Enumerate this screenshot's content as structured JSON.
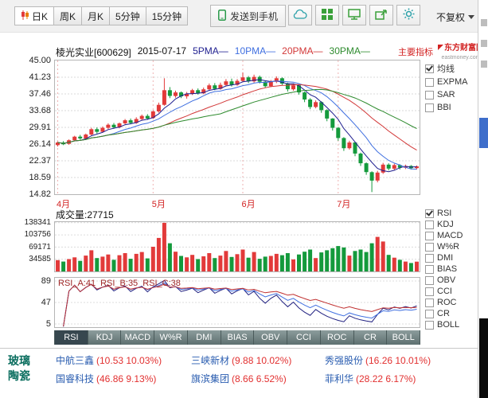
{
  "toolbar": {
    "period_tabs": [
      {
        "label": "日K",
        "active": true
      },
      {
        "label": "周K",
        "active": false
      },
      {
        "label": "月K",
        "active": false
      },
      {
        "label": "5分钟",
        "active": false
      },
      {
        "label": "15分钟",
        "active": false
      }
    ],
    "send_to_phone_label": "发送到手机",
    "icon_buttons": [
      "cloud-icon",
      "grid-icon",
      "monitor-icon",
      "share-icon",
      "gear-icon"
    ],
    "adjust_label": "不复权"
  },
  "chart_header": {
    "stock_title": "棱光实业[600629]",
    "date": "2015-07-17",
    "ma_legend": [
      {
        "label": "5PMA—",
        "color": "#1e1e8f"
      },
      {
        "label": "10PMA—",
        "color": "#3f6fe0"
      },
      {
        "label": "20PMA—",
        "color": "#d23838"
      },
      {
        "label": "30PMA—",
        "color": "#2e8b2e"
      }
    ],
    "main_indicator_link": "主要指标"
  },
  "watermark": {
    "line1": "东方财富网",
    "line2": "eastmoney.com"
  },
  "main_panel_checks": [
    {
      "label": "均线",
      "checked": true
    },
    {
      "label": "EXPMA",
      "checked": false
    },
    {
      "label": "SAR",
      "checked": false
    },
    {
      "label": "BBI",
      "checked": false
    }
  ],
  "indicator_checks": [
    {
      "label": "RSI",
      "checked": true
    },
    {
      "label": "KDJ",
      "checked": false
    },
    {
      "label": "MACD",
      "checked": false
    },
    {
      "label": "W%R",
      "checked": false
    },
    {
      "label": "DMI",
      "checked": false
    },
    {
      "label": "BIAS",
      "checked": false
    },
    {
      "label": "OBV",
      "checked": false
    },
    {
      "label": "CCI",
      "checked": false
    },
    {
      "label": "ROC",
      "checked": false
    },
    {
      "label": "CR",
      "checked": false
    },
    {
      "label": "BOLL",
      "checked": false
    }
  ],
  "volume_panel": {
    "label": "成交量:27715",
    "y_tick_labels": [
      "138341",
      "103756",
      "69171",
      "34585"
    ]
  },
  "rsi_panel": {
    "label_a": "RSI_A:41",
    "label_b": "RSI_B:35",
    "label_c": "RSI_C:38",
    "y_tick_labels": [
      "89",
      "47",
      "5"
    ]
  },
  "indicator_tabs": {
    "active": "RSI",
    "items": [
      "RSI",
      "KDJ",
      "MACD",
      "W%R",
      "DMI",
      "BIAS",
      "OBV",
      "CCI",
      "ROC",
      "CR",
      "BOLL"
    ]
  },
  "sector_board": {
    "line1": "玻璃",
    "line2": "陶瓷"
  },
  "stocks": [
    {
      "name": "中航三鑫",
      "detail": "(10.53 10.03%)"
    },
    {
      "name": "三峡新材",
      "detail": "(9.88 10.02%)"
    },
    {
      "name": "秀强股份",
      "detail": "(16.26 10.01%)"
    },
    {
      "name": "国睿科技",
      "detail": "(46.86 9.13%)"
    },
    {
      "name": "旗滨集团",
      "detail": "(8.66 6.52%)"
    },
    {
      "name": "菲利华",
      "detail": "(28.22 6.17%)"
    }
  ],
  "chart_data": {
    "type": "candlestick",
    "title": "棱光实业[600629] 2015-07-17",
    "ylim": [
      14.82,
      45.0
    ],
    "y_tick_labels": [
      "45.00",
      "41.23",
      "37.46",
      "33.68",
      "29.91",
      "26.14",
      "22.37",
      "18.59",
      "14.82"
    ],
    "x_months": [
      {
        "label": "4月",
        "index": 0
      },
      {
        "label": "5月",
        "index": 17
      },
      {
        "label": "6月",
        "index": 33
      },
      {
        "label": "7月",
        "index": 50
      }
    ],
    "up_color": "#e23a3a",
    "down_color": "#149a3c",
    "ma_periods": [
      5,
      10,
      20,
      30
    ],
    "ma_colors": [
      "#1e1e8f",
      "#3f6fe0",
      "#d23838",
      "#2e8b2e"
    ],
    "rsi_periods": [
      6,
      12,
      24
    ],
    "rsi_colors": [
      "#202080",
      "#4070e0",
      "#c03030"
    ],
    "rsi_ticks": [
      89,
      47,
      5
    ],
    "volume_scale_max": 140000,
    "candles": [
      [
        25.9,
        26.5,
        25.6,
        26.7,
        32000
      ],
      [
        26.5,
        26.1,
        25.9,
        26.8,
        28000
      ],
      [
        26.2,
        27.0,
        26.0,
        27.2,
        35000
      ],
      [
        27.0,
        27.8,
        26.8,
        28.0,
        40000
      ],
      [
        27.8,
        27.4,
        27.1,
        28.2,
        30000
      ],
      [
        27.4,
        28.3,
        27.2,
        28.5,
        45000
      ],
      [
        28.3,
        29.5,
        28.1,
        29.8,
        60000
      ],
      [
        29.5,
        28.9,
        28.5,
        29.9,
        38000
      ],
      [
        28.9,
        29.8,
        28.7,
        30.1,
        42000
      ],
      [
        29.8,
        30.5,
        29.5,
        30.8,
        48000
      ],
      [
        30.5,
        29.9,
        29.6,
        30.9,
        33000
      ],
      [
        29.9,
        30.8,
        29.7,
        31.0,
        46000
      ],
      [
        30.8,
        31.5,
        30.5,
        31.8,
        52000
      ],
      [
        31.5,
        30.9,
        30.6,
        31.9,
        36000
      ],
      [
        30.9,
        31.8,
        30.7,
        32.2,
        50000
      ],
      [
        31.8,
        32.5,
        31.5,
        32.8,
        55000
      ],
      [
        32.5,
        31.9,
        31.6,
        32.9,
        37000
      ],
      [
        32.0,
        33.5,
        31.8,
        33.8,
        70000
      ],
      [
        33.5,
        35.0,
        33.2,
        35.5,
        95000
      ],
      [
        35.0,
        38.3,
        34.8,
        41.0,
        138000
      ],
      [
        38.3,
        37.0,
        36.5,
        39.0,
        80000
      ],
      [
        37.0,
        37.8,
        36.6,
        38.2,
        56000
      ],
      [
        37.8,
        36.9,
        36.5,
        38.0,
        44000
      ],
      [
        36.9,
        37.5,
        36.4,
        37.9,
        40000
      ],
      [
        37.5,
        38.3,
        37.2,
        38.6,
        47000
      ],
      [
        38.3,
        37.6,
        37.3,
        38.7,
        35000
      ],
      [
        37.6,
        38.5,
        37.4,
        38.9,
        43000
      ],
      [
        38.5,
        39.4,
        38.2,
        39.8,
        52000
      ],
      [
        39.4,
        38.6,
        38.3,
        39.9,
        38000
      ],
      [
        38.6,
        39.5,
        38.4,
        40.0,
        45000
      ],
      [
        39.5,
        40.3,
        39.2,
        40.8,
        58000
      ],
      [
        40.3,
        39.5,
        39.1,
        40.9,
        41000
      ],
      [
        39.5,
        40.4,
        39.3,
        40.8,
        49000
      ],
      [
        40.4,
        41.2,
        40.1,
        42.3,
        62000
      ],
      [
        41.2,
        40.3,
        39.9,
        41.5,
        39000
      ],
      [
        40.3,
        41.3,
        40.0,
        41.8,
        55000
      ],
      [
        41.3,
        40.2,
        39.8,
        41.6,
        36000
      ],
      [
        40.2,
        39.2,
        38.8,
        40.5,
        42000
      ],
      [
        39.2,
        40.2,
        39.0,
        40.6,
        44000
      ],
      [
        40.2,
        41.0,
        39.9,
        41.4,
        50000
      ],
      [
        41.0,
        39.8,
        39.4,
        41.2,
        46000
      ],
      [
        39.8,
        38.5,
        38.0,
        40.0,
        52000
      ],
      [
        38.5,
        39.4,
        38.2,
        39.8,
        34000
      ],
      [
        39.4,
        37.8,
        37.3,
        39.6,
        48000
      ],
      [
        37.8,
        36.2,
        35.6,
        38.0,
        56000
      ],
      [
        36.2,
        34.5,
        34.0,
        36.5,
        62000
      ],
      [
        34.5,
        35.6,
        34.2,
        36.0,
        38000
      ],
      [
        35.6,
        33.8,
        33.2,
        35.8,
        54000
      ],
      [
        33.8,
        31.9,
        31.3,
        34.0,
        60000
      ],
      [
        31.9,
        29.8,
        29.2,
        32.0,
        66000
      ],
      [
        29.8,
        27.5,
        26.9,
        30.0,
        72000
      ],
      [
        27.5,
        25.2,
        24.6,
        27.7,
        68000
      ],
      [
        25.2,
        26.5,
        24.9,
        26.9,
        45000
      ],
      [
        26.5,
        24.0,
        23.4,
        26.7,
        58000
      ],
      [
        24.0,
        21.8,
        21.2,
        24.2,
        62000
      ],
      [
        21.8,
        19.8,
        19.2,
        22.0,
        55000
      ],
      [
        19.8,
        17.9,
        15.3,
        20.0,
        80000
      ],
      [
        17.9,
        19.7,
        17.5,
        20.1,
        98000
      ],
      [
        19.7,
        21.5,
        19.4,
        21.9,
        85000
      ],
      [
        21.5,
        20.6,
        20.2,
        21.8,
        47000
      ],
      [
        20.6,
        21.4,
        20.3,
        21.7,
        39000
      ],
      [
        21.4,
        20.8,
        20.4,
        21.6,
        33000
      ],
      [
        20.8,
        21.2,
        20.5,
        21.5,
        28000
      ],
      [
        21.2,
        20.7,
        20.4,
        21.4,
        24000
      ],
      [
        20.7,
        21.1,
        20.4,
        21.3,
        27715
      ]
    ]
  }
}
